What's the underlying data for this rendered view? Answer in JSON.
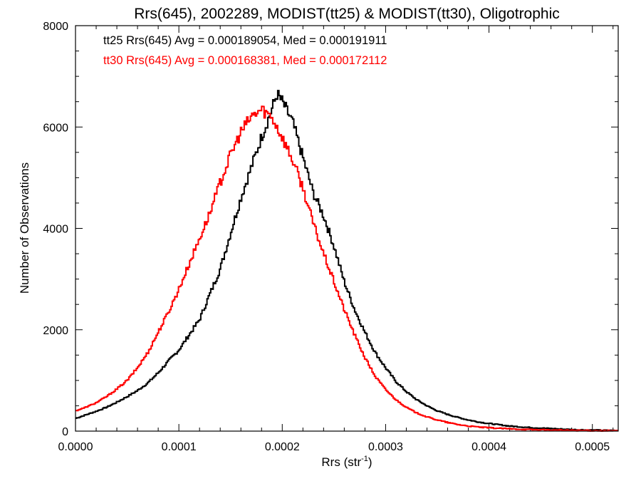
{
  "chart_data": {
    "type": "line",
    "title": "Rrs(645), 2002289, MODIST(tt25) & MODIST(tt30), Oligotrophic",
    "xlabel": "Rrs (str",
    "xlabel_sup": "-1",
    "xlabel_close": ")",
    "ylabel": "Number of Observations",
    "xlim": [
      0,
      0.000525
    ],
    "ylim": [
      0,
      8000
    ],
    "x_ticks": [
      0,
      0.0001,
      0.0002,
      0.0003,
      0.0004,
      0.0005
    ],
    "x_tick_labels": [
      "0.0000",
      "0.0001",
      "0.0002",
      "0.0003",
      "0.0004",
      "0.0005"
    ],
    "y_ticks": [
      0,
      2000,
      4000,
      6000,
      8000
    ],
    "y_tick_labels": [
      "0",
      "2000",
      "4000",
      "6000",
      "8000"
    ],
    "annotations": [
      "tt25 Rrs(645) Avg = 0.000189054, Med = 0.000191911",
      "tt30 Rrs(645) Avg = 0.000168381, Med = 0.000172112"
    ],
    "series": [
      {
        "color": "#000000",
        "style": "histogram-step",
        "x": [
          0,
          1e-05,
          2e-05,
          3e-05,
          4e-05,
          5e-05,
          6e-05,
          7e-05,
          8e-05,
          9e-05,
          0.0001,
          0.00011,
          0.00012,
          0.00013,
          0.00014,
          0.00015,
          0.00016,
          0.00017,
          0.00018,
          0.00019,
          0.000195,
          0.0002,
          0.00021,
          0.00022,
          0.00023,
          0.00024,
          0.00025,
          0.00026,
          0.00027,
          0.00028,
          0.00029,
          0.0003,
          0.00031,
          0.00032,
          0.00033,
          0.00034,
          0.00035,
          0.00036,
          0.00037,
          0.00038,
          0.00039,
          0.0004,
          0.00042,
          0.00044,
          0.00046,
          0.00048,
          0.0005,
          0.000525
        ],
        "y": [
          250,
          320,
          390,
          470,
          570,
          680,
          800,
          950,
          1150,
          1380,
          1600,
          1900,
          2200,
          2700,
          3200,
          3900,
          4600,
          5200,
          5800,
          6350,
          6650,
          6500,
          6100,
          5400,
          4700,
          4250,
          3650,
          2950,
          2400,
          1950,
          1550,
          1250,
          980,
          780,
          620,
          500,
          400,
          330,
          270,
          220,
          180,
          150,
          100,
          70,
          50,
          30,
          20,
          10
        ]
      },
      {
        "color": "#ff0000",
        "style": "histogram-step",
        "x": [
          0,
          1e-05,
          2e-05,
          3e-05,
          4e-05,
          5e-05,
          6e-05,
          7e-05,
          8e-05,
          9e-05,
          0.0001,
          0.00011,
          0.00012,
          0.00013,
          0.00014,
          0.00015,
          0.00016,
          0.00017,
          0.00018,
          0.00019,
          0.0002,
          0.00021,
          0.00022,
          0.00023,
          0.00024,
          0.00025,
          0.00026,
          0.00027,
          0.00028,
          0.00029,
          0.0003,
          0.00031,
          0.00032,
          0.00033,
          0.00034,
          0.00035,
          0.00036,
          0.00037,
          0.00038,
          0.00039,
          0.0004,
          0.00042,
          0.00044,
          0.00046,
          0.00048,
          0.0005,
          0.000525
        ],
        "y": [
          400,
          470,
          560,
          680,
          830,
          1000,
          1250,
          1550,
          1950,
          2350,
          2800,
          3300,
          3800,
          4300,
          4900,
          5450,
          5900,
          6200,
          6350,
          6200,
          5800,
          5350,
          4800,
          4100,
          3500,
          2950,
          2400,
          1900,
          1450,
          1080,
          820,
          620,
          470,
          360,
          280,
          220,
          170,
          130,
          100,
          80,
          65,
          45,
          30,
          20,
          15,
          10,
          5
        ]
      }
    ]
  }
}
